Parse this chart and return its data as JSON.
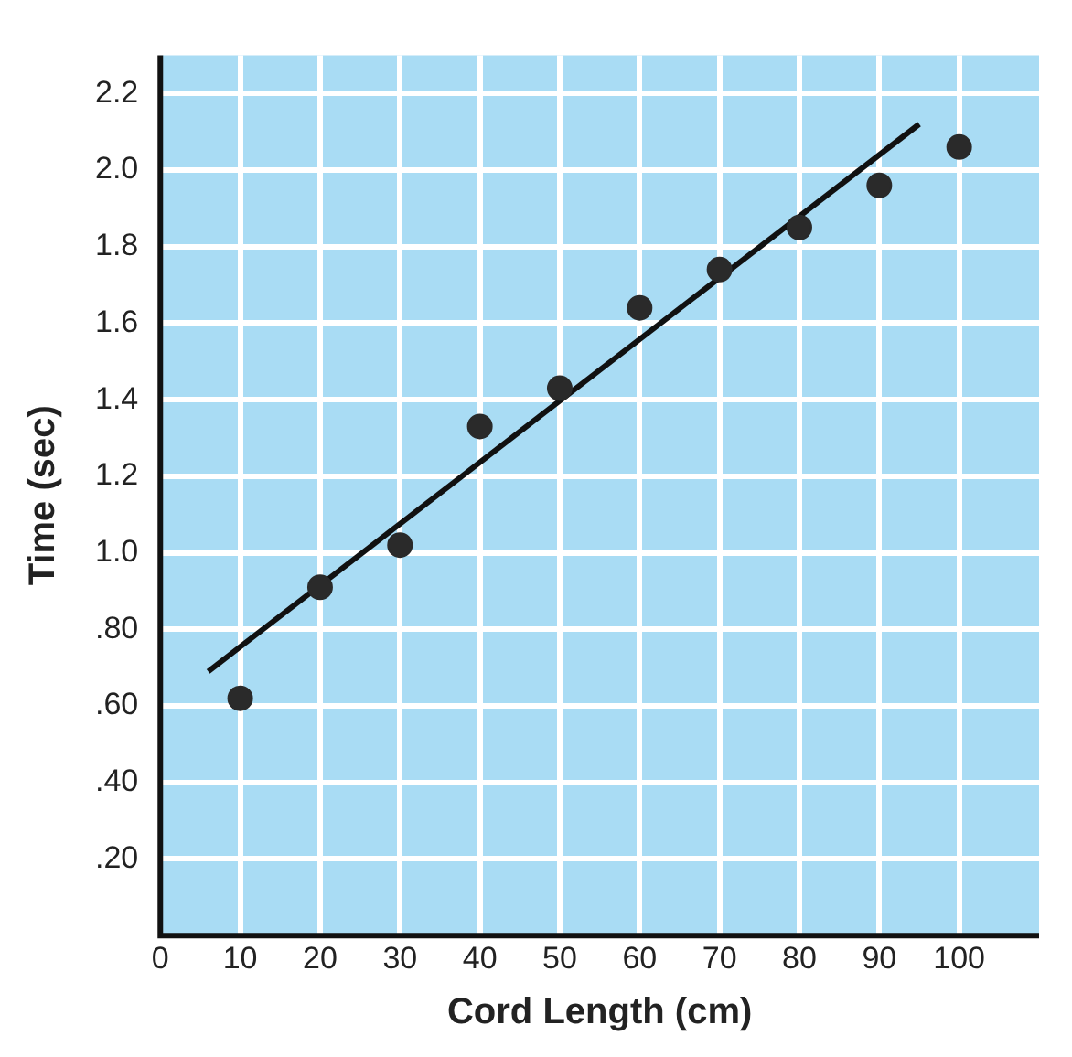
{
  "chart_data": {
    "type": "scatter",
    "xlabel": "Cord Length (cm)",
    "ylabel": "Time (sec)",
    "xlim": [
      0,
      110
    ],
    "ylim": [
      0,
      2.3
    ],
    "xticks": [
      0,
      10,
      20,
      30,
      40,
      50,
      60,
      70,
      80,
      90,
      100
    ],
    "yticks": [
      {
        "value": 0.2,
        "label": ".20"
      },
      {
        "value": 0.4,
        "label": ".40"
      },
      {
        "value": 0.6,
        "label": ".60"
      },
      {
        "value": 0.8,
        "label": ".80"
      },
      {
        "value": 1.0,
        "label": "1.0"
      },
      {
        "value": 1.2,
        "label": "1.2"
      },
      {
        "value": 1.4,
        "label": "1.4"
      },
      {
        "value": 1.6,
        "label": "1.6"
      },
      {
        "value": 1.8,
        "label": "1.8"
      },
      {
        "value": 2.0,
        "label": "2.0"
      },
      {
        "value": 2.2,
        "label": "2.2"
      }
    ],
    "grid": true,
    "legend": false,
    "marker": "circle",
    "series": [
      {
        "color": "#2a2a2a",
        "x": [
          10,
          20,
          30,
          40,
          50,
          60,
          70,
          80,
          90,
          100
        ],
        "values": [
          0.62,
          0.91,
          1.02,
          1.33,
          1.43,
          1.64,
          1.74,
          1.85,
          1.96,
          2.06
        ]
      },
      {
        "type": "line",
        "color": "#111111",
        "x": [
          6,
          95
        ],
        "values": [
          0.69,
          2.12
        ],
        "marker": "none",
        "line_style": "solid"
      }
    ]
  }
}
